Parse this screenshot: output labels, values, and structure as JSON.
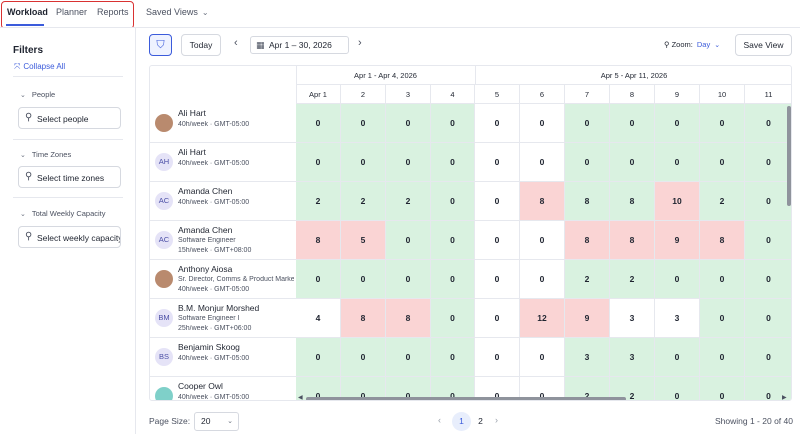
{
  "tabs": [
    {
      "label": "Workload",
      "active": true
    },
    {
      "label": "Planner",
      "active": false
    },
    {
      "label": "Reports",
      "active": false
    }
  ],
  "saved_views": {
    "label": "Saved Views",
    "icon": "chevron-down-icon"
  },
  "sidebar": {
    "title": "Filters",
    "collapse_all": "Collapse All",
    "groups": [
      {
        "label": "People",
        "placeholder": "Select people"
      },
      {
        "label": "Time Zones",
        "placeholder": "Select time zones"
      },
      {
        "label": "Total Weekly Capacity",
        "placeholder": "Select weekly capacity"
      }
    ]
  },
  "toolbar": {
    "today": "Today",
    "date_range": "Apr 1 – 30, 2026",
    "zoom_label": "Zoom:",
    "zoom_value": "Day",
    "save_view": "Save View"
  },
  "weeks": [
    "Apr 1 - Apr 4, 2026",
    "Apr 5 - Apr 11, 2026"
  ],
  "days": [
    "Apr 1",
    "2",
    "3",
    "4",
    "5",
    "6",
    "7",
    "8",
    "9",
    "10",
    "11"
  ],
  "people": [
    {
      "name": "Ali Hart",
      "title": "",
      "meta": "40h/week · GMT-05:00",
      "initials": "",
      "avatar": "photo",
      "cells": [
        [
          "0",
          "green"
        ],
        [
          "0",
          "green"
        ],
        [
          "0",
          "green"
        ],
        [
          "0",
          "green"
        ],
        [
          "0",
          "white"
        ],
        [
          "0",
          "white"
        ],
        [
          "0",
          "green"
        ],
        [
          "0",
          "green"
        ],
        [
          "0",
          "green"
        ],
        [
          "0",
          "green"
        ],
        [
          "0",
          "green"
        ]
      ]
    },
    {
      "name": "Ali Hart",
      "title": "",
      "meta": "40h/week · GMT-05:00",
      "initials": "AH",
      "avatar": "initials",
      "cells": [
        [
          "0",
          "green"
        ],
        [
          "0",
          "green"
        ],
        [
          "0",
          "green"
        ],
        [
          "0",
          "green"
        ],
        [
          "0",
          "white"
        ],
        [
          "0",
          "white"
        ],
        [
          "0",
          "green"
        ],
        [
          "0",
          "green"
        ],
        [
          "0",
          "green"
        ],
        [
          "0",
          "green"
        ],
        [
          "0",
          "green"
        ]
      ]
    },
    {
      "name": "Amanda Chen",
      "title": "",
      "meta": "40h/week · GMT-05:00",
      "initials": "AC",
      "avatar": "initials",
      "cells": [
        [
          "2",
          "green"
        ],
        [
          "2",
          "green"
        ],
        [
          "2",
          "green"
        ],
        [
          "0",
          "green"
        ],
        [
          "0",
          "white"
        ],
        [
          "8",
          "red"
        ],
        [
          "8",
          "green"
        ],
        [
          "8",
          "green"
        ],
        [
          "10",
          "red"
        ],
        [
          "2",
          "green"
        ],
        [
          "0",
          "green"
        ]
      ]
    },
    {
      "name": "Amanda Chen",
      "title": "Software Engineer",
      "meta": "15h/week · GMT+08:00",
      "initials": "AC",
      "avatar": "initials",
      "cells": [
        [
          "8",
          "red"
        ],
        [
          "5",
          "red"
        ],
        [
          "0",
          "green"
        ],
        [
          "0",
          "green"
        ],
        [
          "0",
          "white"
        ],
        [
          "0",
          "white"
        ],
        [
          "8",
          "red"
        ],
        [
          "8",
          "red"
        ],
        [
          "9",
          "red"
        ],
        [
          "8",
          "red"
        ],
        [
          "0",
          "green"
        ]
      ]
    },
    {
      "name": "Anthony Aiosa",
      "title": "Sr. Director, Comms & Product Marketing",
      "meta": "40h/week · GMT-05:00",
      "initials": "",
      "avatar": "photo",
      "cells": [
        [
          "0",
          "green"
        ],
        [
          "0",
          "green"
        ],
        [
          "0",
          "green"
        ],
        [
          "0",
          "green"
        ],
        [
          "0",
          "white"
        ],
        [
          "0",
          "white"
        ],
        [
          "2",
          "green"
        ],
        [
          "2",
          "green"
        ],
        [
          "0",
          "green"
        ],
        [
          "0",
          "green"
        ],
        [
          "0",
          "green"
        ]
      ]
    },
    {
      "name": "B.M. Monjur Morshed",
      "title": "Software Engineer I",
      "meta": "25h/week · GMT+06:00",
      "initials": "BM",
      "avatar": "initials",
      "cells": [
        [
          "4",
          "white"
        ],
        [
          "8",
          "red"
        ],
        [
          "8",
          "red"
        ],
        [
          "0",
          "green"
        ],
        [
          "0",
          "white"
        ],
        [
          "12",
          "red"
        ],
        [
          "9",
          "red"
        ],
        [
          "3",
          "white"
        ],
        [
          "3",
          "white"
        ],
        [
          "0",
          "green"
        ],
        [
          "0",
          "green"
        ]
      ]
    },
    {
      "name": "Benjamin Skoog",
      "title": "",
      "meta": "40h/week · GMT-05:00",
      "initials": "BS",
      "avatar": "initials",
      "cells": [
        [
          "0",
          "green"
        ],
        [
          "0",
          "green"
        ],
        [
          "0",
          "green"
        ],
        [
          "0",
          "green"
        ],
        [
          "0",
          "white"
        ],
        [
          "0",
          "white"
        ],
        [
          "3",
          "green"
        ],
        [
          "3",
          "green"
        ],
        [
          "0",
          "green"
        ],
        [
          "0",
          "green"
        ],
        [
          "0",
          "green"
        ]
      ]
    },
    {
      "name": "Cooper Owl",
      "title": "",
      "meta": "40h/week · GMT-05:00",
      "initials": "",
      "avatar": "owl",
      "cells": [
        [
          "0",
          "green"
        ],
        [
          "0",
          "green"
        ],
        [
          "0",
          "green"
        ],
        [
          "0",
          "green"
        ],
        [
          "0",
          "white"
        ],
        [
          "0",
          "white"
        ],
        [
          "2",
          "green"
        ],
        [
          "2",
          "green"
        ],
        [
          "0",
          "green"
        ],
        [
          "0",
          "green"
        ],
        [
          "0",
          "green"
        ]
      ]
    }
  ],
  "footer": {
    "page_size_label": "Page Size:",
    "page_size_value": "20",
    "pages": [
      "1",
      "2"
    ],
    "active_page": "1",
    "showing": "Showing 1 - 20 of 40"
  },
  "colors": {
    "accent": "#3b5bdb",
    "over": "#fad4d4",
    "available": "#d9f2e0",
    "highlight_border": "#d93232"
  }
}
